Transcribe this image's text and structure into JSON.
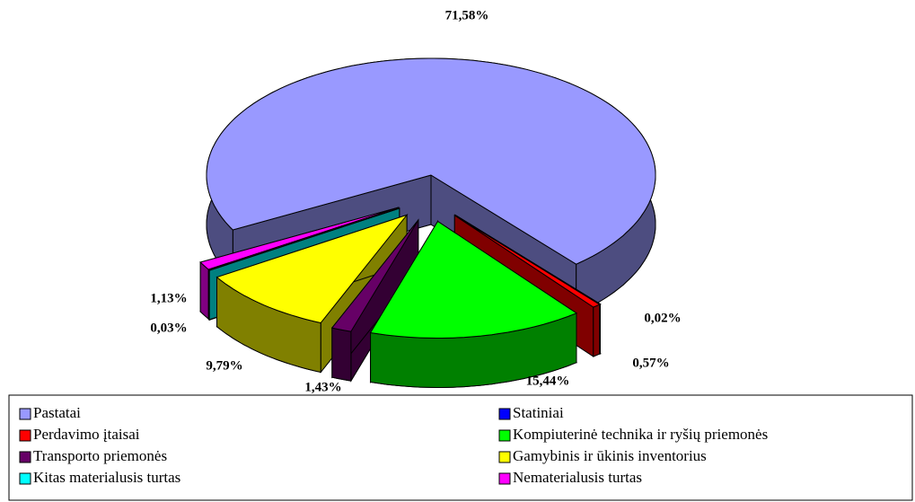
{
  "chart_data": {
    "type": "pie3d",
    "categories": [
      "Pastatai",
      "Statiniai",
      "Perdavimo įtaisai",
      "Kompiuterinė technika ir ryšių priemonės",
      "Transporto priemonės",
      "Gamybinis ir ūkinis inventorius",
      "Kitas materialusis turtas",
      "Nematerialusis turtas"
    ],
    "values": [
      71.58,
      0.02,
      0.57,
      15.44,
      1.43,
      9.79,
      0.03,
      1.13
    ],
    "value_labels": [
      "71,58%",
      "0,02%",
      "0,57%",
      "15,44%",
      "1,43%",
      "9,79%",
      "0,03%",
      "1,13%"
    ],
    "colors": [
      "#9999ff",
      "#0000ff",
      "#ff0000",
      "#00ff00",
      "#660066",
      "#ffff00",
      "#00ffff",
      "#ff00ff"
    ],
    "legend": "bottom"
  }
}
